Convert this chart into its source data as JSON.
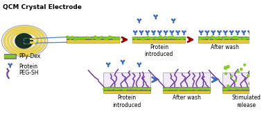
{
  "title": "QCM Crystal Electrode",
  "legend_items": [
    "PPy-Dex",
    "Protein",
    "PEG-SH"
  ],
  "top_labels": [
    "Protein\nintroduced",
    "After wash"
  ],
  "bottom_labels": [
    "Protein\nintroduced",
    "After wash",
    "Stimulated\nrelease"
  ],
  "colors": {
    "background": "#ffffff",
    "film_base": "#e8c840",
    "film_gray": "#8a8a8a",
    "protein_blue": "#3a6abf",
    "peg_purple": "#6b3a9a",
    "peg_fill": "#e8d8f5",
    "arrow_red": "#990000",
    "arrow_blue": "#3a6abf",
    "qcm_dark": "#1a3020",
    "qcm_yellow": "#e8d050",
    "qcm_outline": "#c0c0c0",
    "dex_green": "#80cc20",
    "connector_blue": "#4488cc"
  },
  "figsize": [
    3.78,
    1.68
  ],
  "dpi": 100
}
